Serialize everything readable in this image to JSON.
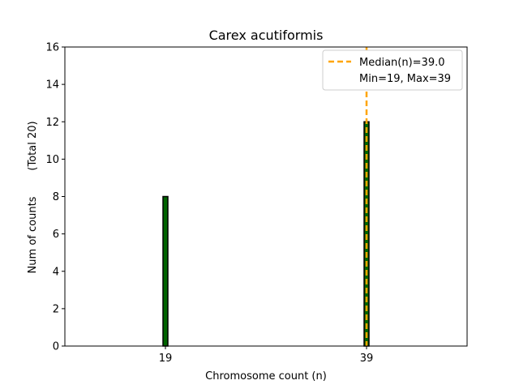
{
  "chart_data": {
    "type": "bar",
    "title": "Carex acutiformis",
    "xlabel": "Chromosome count (n)",
    "ylabel": "Num of counts",
    "ylabel_total": "(Total 20)",
    "x": [
      19,
      39
    ],
    "values": [
      8,
      12
    ],
    "xticks": [
      19,
      39
    ],
    "yticks": [
      0,
      2,
      4,
      6,
      8,
      10,
      12,
      14,
      16
    ],
    "xlim": [
      9,
      49
    ],
    "ylim": [
      0,
      16
    ],
    "bar_color": "#006400",
    "bar_edge_color": "#000000",
    "median": 39.0,
    "median_color": "#FFA500",
    "legend_placement": "top-right",
    "legend": {
      "median_label": "Median(n)=39.0",
      "minmax_label": "Min=19, Max=39"
    },
    "grid": false
  }
}
